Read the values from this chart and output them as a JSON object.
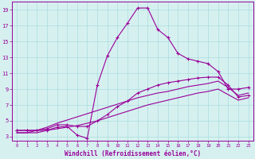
{
  "xlabel": "Windchill (Refroidissement éolien,°C)",
  "bg_color": "#d6f0f0",
  "line_color": "#990099",
  "grid_color": "#aadddd",
  "xlim": [
    -0.5,
    23.5
  ],
  "ylim": [
    2.5,
    20.0
  ],
  "xticks": [
    0,
    1,
    2,
    3,
    4,
    5,
    6,
    7,
    8,
    9,
    10,
    11,
    12,
    13,
    14,
    15,
    16,
    17,
    18,
    19,
    20,
    21,
    22,
    23
  ],
  "yticks": [
    3,
    5,
    7,
    9,
    11,
    13,
    15,
    17,
    19
  ],
  "series1_x": [
    0,
    1,
    2,
    3,
    4,
    5,
    6,
    7,
    8,
    9,
    10,
    11,
    12,
    13,
    14,
    15,
    16,
    17,
    18,
    19,
    20,
    21,
    22,
    23
  ],
  "series1_y": [
    3.8,
    3.8,
    3.8,
    3.8,
    4.2,
    4.3,
    3.2,
    2.8,
    9.5,
    13.2,
    15.5,
    17.3,
    19.2,
    19.2,
    16.5,
    15.5,
    13.5,
    12.8,
    12.5,
    12.2,
    11.2,
    9.0,
    9.0,
    9.2
  ],
  "series2_x": [
    0,
    1,
    2,
    3,
    4,
    5,
    6,
    7,
    8,
    9,
    10,
    11,
    12,
    13,
    14,
    15,
    16,
    17,
    18,
    19,
    20,
    21,
    22,
    23
  ],
  "series2_y": [
    3.8,
    3.8,
    3.8,
    4.0,
    4.5,
    4.5,
    4.3,
    4.3,
    5.0,
    5.8,
    6.8,
    7.5,
    8.5,
    9.0,
    9.5,
    9.8,
    10.0,
    10.2,
    10.4,
    10.5,
    10.5,
    9.5,
    8.0,
    8.2
  ],
  "series3_x": [
    0,
    1,
    2,
    3,
    4,
    5,
    6,
    7,
    8,
    9,
    10,
    11,
    12,
    13,
    14,
    15,
    16,
    17,
    18,
    19,
    20,
    21,
    22,
    23
  ],
  "series3_y": [
    3.5,
    3.5,
    3.5,
    3.8,
    4.0,
    4.2,
    4.4,
    4.7,
    5.0,
    5.4,
    5.8,
    6.2,
    6.6,
    7.0,
    7.3,
    7.6,
    7.9,
    8.2,
    8.5,
    8.7,
    9.0,
    8.3,
    7.6,
    7.9
  ],
  "series4_x": [
    0,
    1,
    2,
    3,
    4,
    5,
    6,
    7,
    8,
    9,
    10,
    11,
    12,
    13,
    14,
    15,
    16,
    17,
    18,
    19,
    20,
    21,
    22,
    23
  ],
  "series4_y": [
    3.5,
    3.5,
    3.8,
    4.2,
    4.7,
    5.1,
    5.5,
    5.9,
    6.3,
    6.7,
    7.1,
    7.5,
    7.9,
    8.2,
    8.5,
    8.7,
    9.0,
    9.3,
    9.5,
    9.7,
    10.0,
    9.2,
    8.2,
    8.5
  ]
}
